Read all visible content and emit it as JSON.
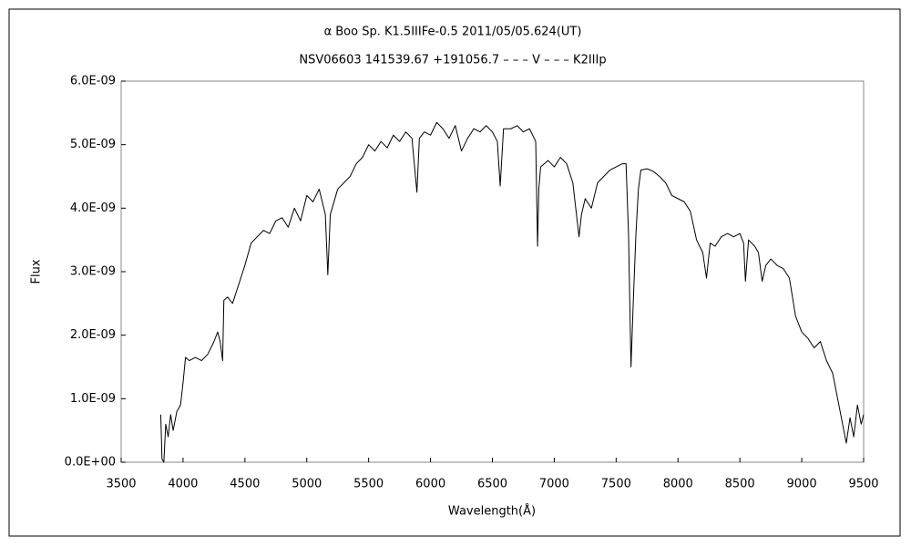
{
  "chart_data": {
    "type": "line",
    "title": "α Boo    Sp. K1.5IIIFe-0.5    2011/05/05.624(UT)",
    "subtitle": "NSV06603 141539.67 +191056.7 – – – V – – – K2IIIp",
    "x_label": "Wavelength(Å)",
    "y_label": "Flux",
    "xlim": [
      3500,
      9500
    ],
    "xticks": [
      3500,
      4000,
      4500,
      5000,
      5500,
      6000,
      6500,
      7000,
      7500,
      8000,
      8500,
      9000,
      9500
    ],
    "ylim": [
      0,
      6e-09
    ],
    "yticks": [
      {
        "value": 0,
        "label": "0.0E+00"
      },
      {
        "value": 1e-09,
        "label": "1.0E-09"
      },
      {
        "value": 2e-09,
        "label": "2.0E-09"
      },
      {
        "value": 3e-09,
        "label": "3.0E-09"
      },
      {
        "value": 4e-09,
        "label": "4.0E-09"
      },
      {
        "value": 5e-09,
        "label": "5.0E-09"
      },
      {
        "value": 6e-09,
        "label": "6.0E-09"
      }
    ],
    "grid": false,
    "color": "#000000",
    "x": [
      3820,
      3830,
      3845,
      3860,
      3880,
      3900,
      3920,
      3950,
      3980,
      4000,
      4020,
      4050,
      4100,
      4150,
      4200,
      4250,
      4280,
      4300,
      4320,
      4330,
      4360,
      4400,
      4450,
      4500,
      4550,
      4600,
      4650,
      4700,
      4750,
      4800,
      4850,
      4900,
      4950,
      5000,
      5050,
      5100,
      5150,
      5170,
      5190,
      5250,
      5300,
      5350,
      5400,
      5450,
      5500,
      5550,
      5600,
      5650,
      5700,
      5750,
      5800,
      5850,
      5890,
      5910,
      5950,
      6000,
      6050,
      6100,
      6150,
      6200,
      6250,
      6300,
      6350,
      6400,
      6450,
      6500,
      6540,
      6563,
      6590,
      6650,
      6700,
      6750,
      6800,
      6850,
      6865,
      6875,
      6890,
      6950,
      7000,
      7050,
      7100,
      7150,
      7200,
      7220,
      7250,
      7300,
      7350,
      7400,
      7450,
      7500,
      7550,
      7580,
      7600,
      7620,
      7640,
      7660,
      7680,
      7700,
      7750,
      7800,
      7850,
      7900,
      7950,
      8000,
      8050,
      8100,
      8150,
      8200,
      8230,
      8260,
      8300,
      8350,
      8400,
      8450,
      8500,
      8530,
      8545,
      8570,
      8620,
      8650,
      8680,
      8710,
      8750,
      8800,
      8850,
      8900,
      8950,
      9000,
      9050,
      9100,
      9150,
      9200,
      9250,
      9300,
      9330,
      9360,
      9390,
      9420,
      9450,
      9480,
      9500
    ],
    "values": [
      7.5e-10,
      5e-11,
      0,
      6e-10,
      4e-10,
      7.5e-10,
      5e-10,
      8e-10,
      9e-10,
      1.25e-09,
      1.65e-09,
      1.6e-09,
      1.65e-09,
      1.6e-09,
      1.7e-09,
      1.9e-09,
      2.05e-09,
      1.9e-09,
      1.6e-09,
      2.55e-09,
      2.6e-09,
      2.5e-09,
      2.8e-09,
      3.1e-09,
      3.45e-09,
      3.55e-09,
      3.65e-09,
      3.6e-09,
      3.8e-09,
      3.85e-09,
      3.7e-09,
      4e-09,
      3.8e-09,
      4.2e-09,
      4.1e-09,
      4.3e-09,
      3.9e-09,
      2.95e-09,
      3.9e-09,
      4.3e-09,
      4.4e-09,
      4.5e-09,
      4.7e-09,
      4.8e-09,
      5e-09,
      4.9e-09,
      5.05e-09,
      4.95e-09,
      5.15e-09,
      5.05e-09,
      5.2e-09,
      5.1e-09,
      4.25e-09,
      5.1e-09,
      5.2e-09,
      5.15e-09,
      5.35e-09,
      5.25e-09,
      5.1e-09,
      5.3e-09,
      4.9e-09,
      5.1e-09,
      5.25e-09,
      5.2e-09,
      5.3e-09,
      5.2e-09,
      5.05e-09,
      4.35e-09,
      5.25e-09,
      5.25e-09,
      5.3e-09,
      5.2e-09,
      5.25e-09,
      5.05e-09,
      3.4e-09,
      4.3e-09,
      4.65e-09,
      4.75e-09,
      4.65e-09,
      4.8e-09,
      4.7e-09,
      4.4e-09,
      3.55e-09,
      3.9e-09,
      4.15e-09,
      4e-09,
      4.4e-09,
      4.5e-09,
      4.6e-09,
      4.65e-09,
      4.7e-09,
      4.7e-09,
      3.6e-09,
      1.5e-09,
      2.6e-09,
      3.6e-09,
      4.3e-09,
      4.6e-09,
      4.62e-09,
      4.58e-09,
      4.5e-09,
      4.4e-09,
      4.2e-09,
      4.15e-09,
      4.1e-09,
      3.95e-09,
      3.5e-09,
      3.3e-09,
      2.9e-09,
      3.45e-09,
      3.4e-09,
      3.55e-09,
      3.6e-09,
      3.55e-09,
      3.6e-09,
      3.45e-09,
      2.85e-09,
      3.5e-09,
      3.4e-09,
      3.3e-09,
      2.85e-09,
      3.1e-09,
      3.2e-09,
      3.1e-09,
      3.05e-09,
      2.9e-09,
      2.3e-09,
      2.05e-09,
      1.95e-09,
      1.8e-09,
      1.9e-09,
      1.6e-09,
      1.4e-09,
      9e-10,
      6e-10,
      3e-10,
      7e-10,
      4e-10,
      9e-10,
      6e-10,
      7.5e-10
    ]
  }
}
